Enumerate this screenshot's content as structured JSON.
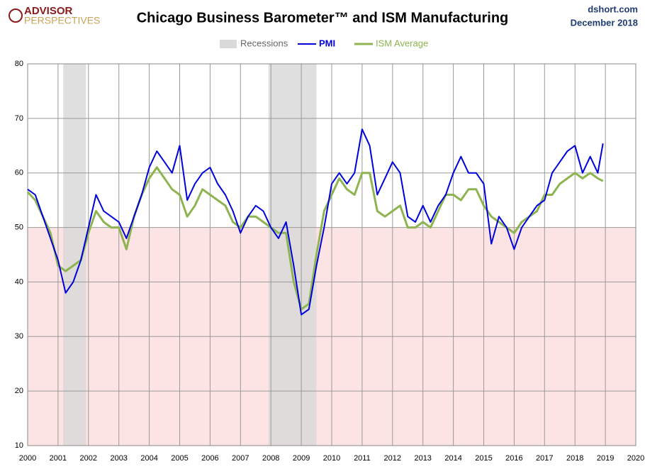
{
  "branding": {
    "logo_top": "ADVISOR",
    "logo_bottom": "PERSPECTIVES",
    "site": "dshort.com",
    "date": "December 2018"
  },
  "chart_data": {
    "type": "line",
    "title": "Chicago Business Barometer™ and ISM Manufacturing",
    "x": [
      2000,
      2000.25,
      2000.5,
      2000.75,
      2001,
      2001.25,
      2001.5,
      2001.75,
      2002,
      2002.25,
      2002.5,
      2002.75,
      2003,
      2003.25,
      2003.5,
      2003.75,
      2004,
      2004.25,
      2004.5,
      2004.75,
      2005,
      2005.25,
      2005.5,
      2005.75,
      2006,
      2006.25,
      2006.5,
      2006.75,
      2007,
      2007.25,
      2007.5,
      2007.75,
      2008,
      2008.25,
      2008.5,
      2008.75,
      2009,
      2009.25,
      2009.5,
      2009.75,
      2010,
      2010.25,
      2010.5,
      2010.75,
      2011,
      2011.25,
      2011.5,
      2011.75,
      2012,
      2012.25,
      2012.5,
      2012.75,
      2013,
      2013.25,
      2013.5,
      2013.75,
      2014,
      2014.25,
      2014.5,
      2014.75,
      2015,
      2015.25,
      2015.5,
      2015.75,
      2016,
      2016.25,
      2016.5,
      2016.75,
      2017,
      2017.25,
      2017.5,
      2017.75,
      2018,
      2018.25,
      2018.5,
      2018.75,
      2018.92
    ],
    "series": [
      {
        "name": "PMI",
        "color": "#0000dd",
        "values": [
          57,
          56,
          52,
          48,
          44,
          38,
          40,
          44,
          50,
          56,
          53,
          52,
          51,
          48,
          52,
          56,
          61,
          64,
          62,
          60,
          65,
          55,
          58,
          60,
          61,
          58,
          56,
          53,
          49,
          52,
          54,
          53,
          50,
          48,
          51,
          43,
          34,
          35,
          43,
          50,
          58,
          60,
          58,
          60,
          68,
          65,
          56,
          59,
          62,
          60,
          52,
          51,
          54,
          51,
          54,
          56,
          60,
          63,
          60,
          60,
          58,
          47,
          52,
          50,
          46,
          50,
          52,
          54,
          55,
          60,
          62,
          64,
          65,
          60,
          63,
          60,
          65.4
        ]
      },
      {
        "name": "ISM Average",
        "color": "#8db450",
        "values": [
          56.5,
          55,
          52,
          49,
          43,
          42,
          43,
          44,
          49,
          53,
          51,
          50,
          50,
          46,
          52,
          56,
          59,
          61,
          59,
          57,
          56,
          52,
          54,
          57,
          56,
          55,
          54,
          51,
          50,
          52,
          52,
          51,
          50,
          49,
          49,
          40,
          35,
          36,
          45,
          53,
          56,
          59,
          57,
          56,
          60,
          60,
          53,
          52,
          53,
          54,
          50,
          50,
          51,
          50,
          53,
          56,
          56,
          55,
          57,
          57,
          54,
          52,
          51,
          50,
          49,
          51,
          52,
          53,
          56,
          56,
          58,
          59,
          60,
          59,
          60,
          59,
          58.5
        ]
      }
    ],
    "recession_label": "Recessions",
    "recession_color": "#d9d9d9",
    "recessions": [
      [
        2001.17,
        2001.92
      ],
      [
        2007.92,
        2009.5
      ]
    ],
    "shade_below": 50,
    "shade_color": "#fde4e4",
    "xlim": [
      2000,
      2020
    ],
    "xticks": [
      2000,
      2001,
      2002,
      2003,
      2004,
      2005,
      2006,
      2007,
      2008,
      2009,
      2010,
      2011,
      2012,
      2013,
      2014,
      2015,
      2016,
      2017,
      2018,
      2019,
      2020
    ],
    "ylim": [
      10,
      80
    ],
    "yticks": [
      10,
      20,
      30,
      40,
      50,
      60,
      70,
      80
    ],
    "grid": true
  }
}
